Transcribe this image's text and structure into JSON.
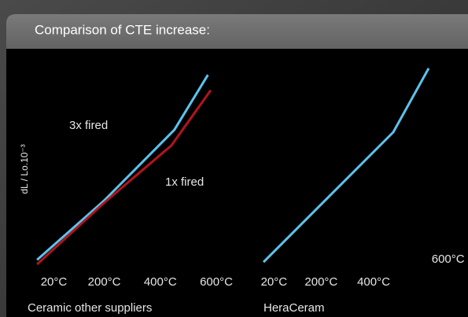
{
  "header": {
    "title": "Comparison of CTE increase:"
  },
  "chart_data": [
    {
      "type": "line",
      "title": "Ceramic other suppliers",
      "ylabel": "dL / Lo.10⁻³",
      "x": [
        -40,
        200,
        450,
        570
      ],
      "xlim": [
        -60,
        600
      ],
      "xticks": [
        {
          "value": 20,
          "label": "20°C"
        },
        {
          "value": 200,
          "label": "200°C"
        },
        {
          "value": 400,
          "label": "400°C"
        },
        {
          "value": 600,
          "label": "600°C"
        }
      ],
      "ylim": [
        0,
        100
      ],
      "series": [
        {
          "name": "3x fired",
          "color": "#5cc3ee",
          "values": [
            7,
            34,
            66,
            91
          ]
        },
        {
          "name": "1x fired",
          "color": "#b3141d",
          "x": [
            -40,
            200,
            440,
            580
          ],
          "values": [
            5,
            33,
            59,
            84
          ]
        }
      ]
    },
    {
      "type": "line",
      "title": "HeraCeram",
      "x": [
        -20,
        475,
        610
      ],
      "xlim": [
        -35,
        655
      ],
      "xticks": [
        {
          "value": 20,
          "label": "20°C"
        },
        {
          "value": 200,
          "label": "200°C"
        },
        {
          "value": 400,
          "label": "400°C"
        },
        {
          "value": 600,
          "label": "600°C"
        }
      ],
      "ylim": [
        0,
        100
      ],
      "series": [
        {
          "color": "#5cc3ee",
          "values": [
            6,
            65,
            94
          ]
        }
      ]
    }
  ]
}
